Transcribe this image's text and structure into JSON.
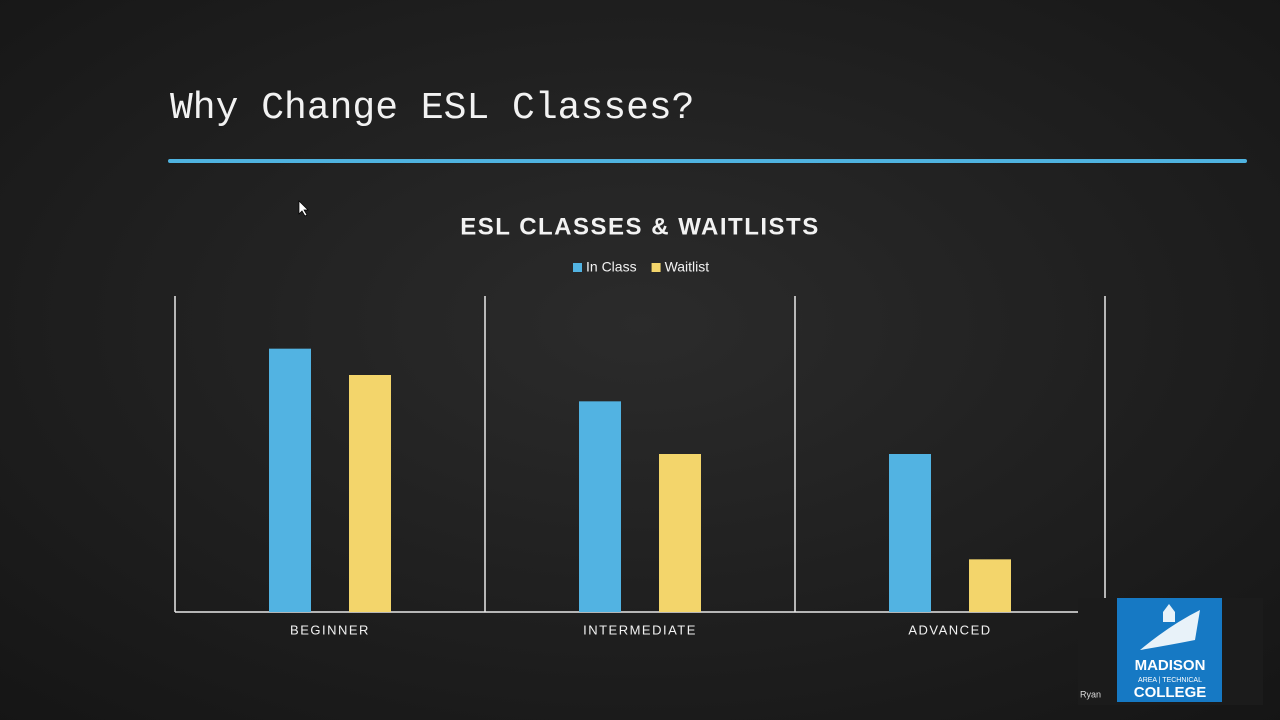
{
  "slide_title": "Why Change ESL Classes?",
  "chart_data": {
    "type": "bar",
    "title": "ESL CLASSES & WAITLISTS",
    "categories": [
      "BEGINNER",
      "INTERMEDIATE",
      "ADVANCED"
    ],
    "series": [
      {
        "name": "In Class",
        "color": "#52b3e2",
        "values": [
          5,
          4,
          3
        ]
      },
      {
        "name": "Waitlist",
        "color": "#f3d56b",
        "values": [
          4.5,
          3,
          1
        ]
      }
    ],
    "ylim": [
      0,
      6
    ],
    "legend": "top"
  },
  "presenter": {
    "name": "Ryan",
    "logo": [
      "MADISON",
      "AREA | TECHNICAL",
      "COLLEGE"
    ]
  }
}
